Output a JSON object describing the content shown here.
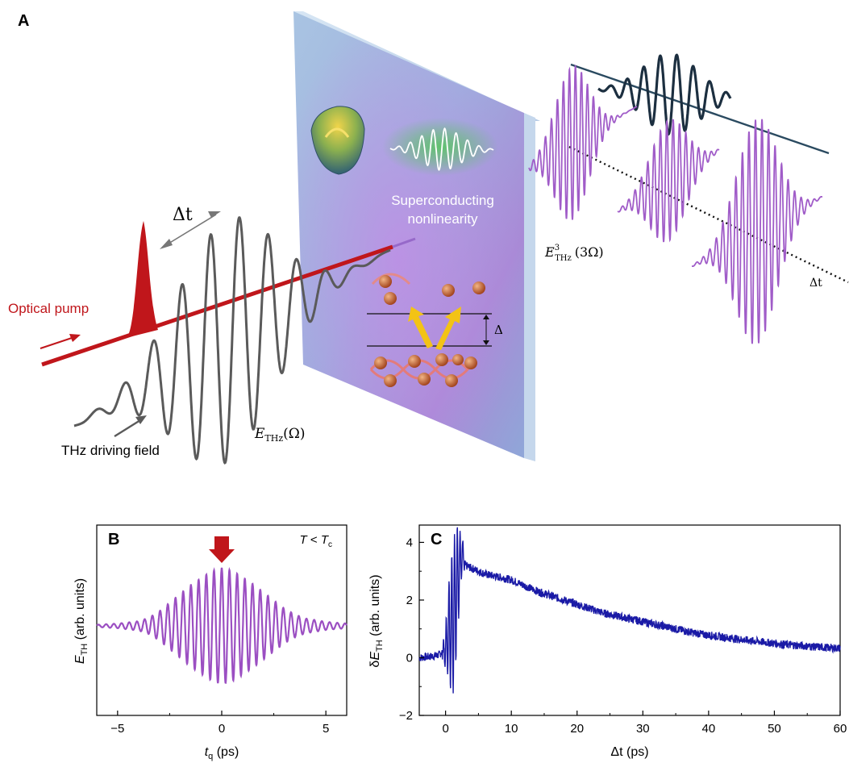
{
  "panel_a": {
    "label": "A",
    "delay_label": "Δt",
    "optical_pump_label": "Optical pump",
    "thz_driving_label": "THz driving field",
    "e_thz_label": "E",
    "e_thz_sub": "THz",
    "e_thz_paren": "(Ω)",
    "e3_label": "E",
    "e3_sup": "3",
    "e3_sub": "THz",
    "e3_paren": "(3Ω)",
    "sc_line1": "Superconducting",
    "sc_line2": "nonlinearity",
    "gap_label": "Δ",
    "delay_axis_label": "Δt",
    "colors": {
      "pump": "#c0161b",
      "thz": "#555555",
      "third_harmonic": "#a05cc8",
      "sample": "#9fb6dc",
      "envelope": "#1c2f40"
    }
  },
  "panel_b": {
    "label": "B",
    "condition_T": "T",
    "condition_lt": " < ",
    "condition_Tc": "T",
    "condition_c": "c",
    "ylabel_main": "E",
    "ylabel_sub": "TH",
    "ylabel_rest": " (arb. units)",
    "xlabel_main": "t",
    "xlabel_sub": "q",
    "xlabel_rest": " (ps)",
    "xticks": [
      "−5",
      "0",
      "5"
    ],
    "marker": "down-arrow",
    "marker_color": "#c0161b"
  },
  "panel_c": {
    "label": "C",
    "ylabel_delta": "δ",
    "ylabel_main": "E",
    "ylabel_sub": "TH",
    "ylabel_rest": " (arb. units)",
    "xlabel": "Δt (ps)",
    "xticks": [
      "0",
      "10",
      "20",
      "30",
      "40",
      "50",
      "60"
    ],
    "yticks": [
      "4",
      "2",
      "0",
      "−2"
    ]
  },
  "chart_data": [
    {
      "type": "line",
      "panel": "B",
      "series": [
        {
          "color": "#9b4fc2",
          "description_free": true,
          "x": [
            -6,
            -5,
            -4,
            -3.5,
            -3,
            -2.5,
            -2,
            -1.5,
            -1,
            -0.5,
            0,
            0.5,
            1,
            1.5,
            2,
            2.5,
            3,
            3.5,
            4,
            5,
            6
          ],
          "envelope": [
            0.02,
            0.04,
            0.08,
            0.14,
            0.25,
            0.4,
            0.55,
            0.7,
            0.82,
            0.94,
            1.0,
            0.95,
            0.84,
            0.72,
            0.58,
            0.44,
            0.3,
            0.2,
            0.13,
            0.07,
            0.04
          ]
        }
      ],
      "xlim": [
        -6,
        6
      ],
      "carrier_period_ps": 0.37,
      "xlabel": "tq (ps)",
      "ylabel": "ETH (arb. units)",
      "marker_x": 0
    },
    {
      "type": "line",
      "panel": "C",
      "series": [
        {
          "color": "#1a1aa6",
          "x": [
            -4,
            -2,
            -1,
            0,
            0.5,
            1,
            1.5,
            2,
            2.5,
            3,
            4,
            5,
            6,
            8,
            10,
            12,
            14,
            16,
            18,
            20,
            22,
            24,
            26,
            28,
            30,
            32,
            34,
            36,
            38,
            40,
            42,
            44,
            46,
            48,
            50,
            52,
            54,
            56,
            58,
            60
          ],
          "y": [
            0.0,
            0.05,
            0.1,
            0.3,
            1.0,
            1.2,
            2.0,
            3.0,
            3.6,
            3.2,
            3.1,
            3.0,
            2.9,
            2.8,
            2.7,
            2.5,
            2.3,
            2.15,
            2.0,
            1.85,
            1.7,
            1.55,
            1.45,
            1.35,
            1.25,
            1.15,
            1.05,
            0.95,
            0.85,
            0.78,
            0.72,
            0.66,
            0.6,
            0.55,
            0.5,
            0.45,
            0.42,
            0.38,
            0.35,
            0.33
          ]
        }
      ],
      "xlim": [
        -4,
        60
      ],
      "ylim": [
        -2,
        4.6
      ],
      "xlabel": "Δt (ps)",
      "ylabel": "δETH (arb. units)"
    }
  ]
}
